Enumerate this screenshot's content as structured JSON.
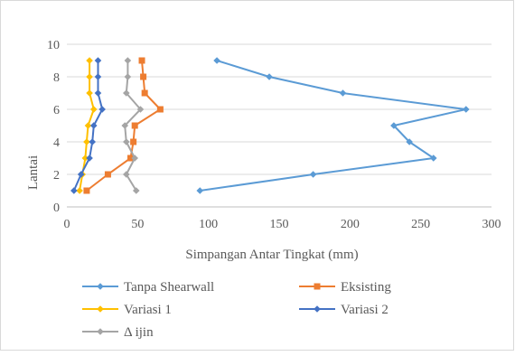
{
  "chart_data": {
    "type": "line",
    "title": "",
    "xlabel": "Simpangan Antar Tingkat (mm)",
    "ylabel": "Lantai",
    "xlim": [
      0,
      300
    ],
    "ylim": [
      0,
      10
    ],
    "x_ticks": [
      "0",
      "50",
      "100",
      "150",
      "200",
      "250",
      "300"
    ],
    "y_ticks": [
      "0",
      "2",
      "4",
      "6",
      "8",
      "10"
    ],
    "grid": "horizontal",
    "legend_position": "bottom",
    "series": [
      {
        "name": "Tanpa Shearwall",
        "color": "#5b9bd5",
        "marker": "diamond",
        "points": [
          [
            94,
            1
          ],
          [
            174,
            2
          ],
          [
            259,
            3
          ],
          [
            242,
            4
          ],
          [
            231,
            5
          ],
          [
            282,
            6
          ],
          [
            195,
            7
          ],
          [
            143,
            8
          ],
          [
            106,
            9
          ]
        ]
      },
      {
        "name": "Eksisting",
        "color": "#ed7d31",
        "marker": "square",
        "points": [
          [
            14,
            1
          ],
          [
            29,
            2
          ],
          [
            45,
            3
          ],
          [
            47,
            4
          ],
          [
            48,
            5
          ],
          [
            66,
            6
          ],
          [
            55,
            7
          ],
          [
            54,
            8
          ],
          [
            53,
            9
          ]
        ]
      },
      {
        "name": "Variasi 1",
        "color": "#ffc000",
        "marker": "diamond",
        "points": [
          [
            9,
            1
          ],
          [
            11,
            2
          ],
          [
            13,
            3
          ],
          [
            14,
            4
          ],
          [
            15,
            5
          ],
          [
            19,
            6
          ],
          [
            16,
            7
          ],
          [
            16,
            8
          ],
          [
            16,
            9
          ]
        ]
      },
      {
        "name": "Variasi 2",
        "color": "#4472c4",
        "marker": "diamond",
        "points": [
          [
            5,
            1
          ],
          [
            10,
            2
          ],
          [
            16,
            3
          ],
          [
            18,
            4
          ],
          [
            19,
            5
          ],
          [
            25,
            6
          ],
          [
            22,
            7
          ],
          [
            22,
            8
          ],
          [
            22,
            9
          ]
        ]
      },
      {
        "name": "Δ ijin",
        "color": "#a5a5a5",
        "marker": "diamond",
        "points": [
          [
            49,
            1
          ],
          [
            42,
            2
          ],
          [
            48,
            3
          ],
          [
            42,
            4
          ],
          [
            41,
            5
          ],
          [
            52,
            6
          ],
          [
            42,
            7
          ],
          [
            43,
            8
          ],
          [
            43,
            9
          ]
        ]
      }
    ]
  }
}
